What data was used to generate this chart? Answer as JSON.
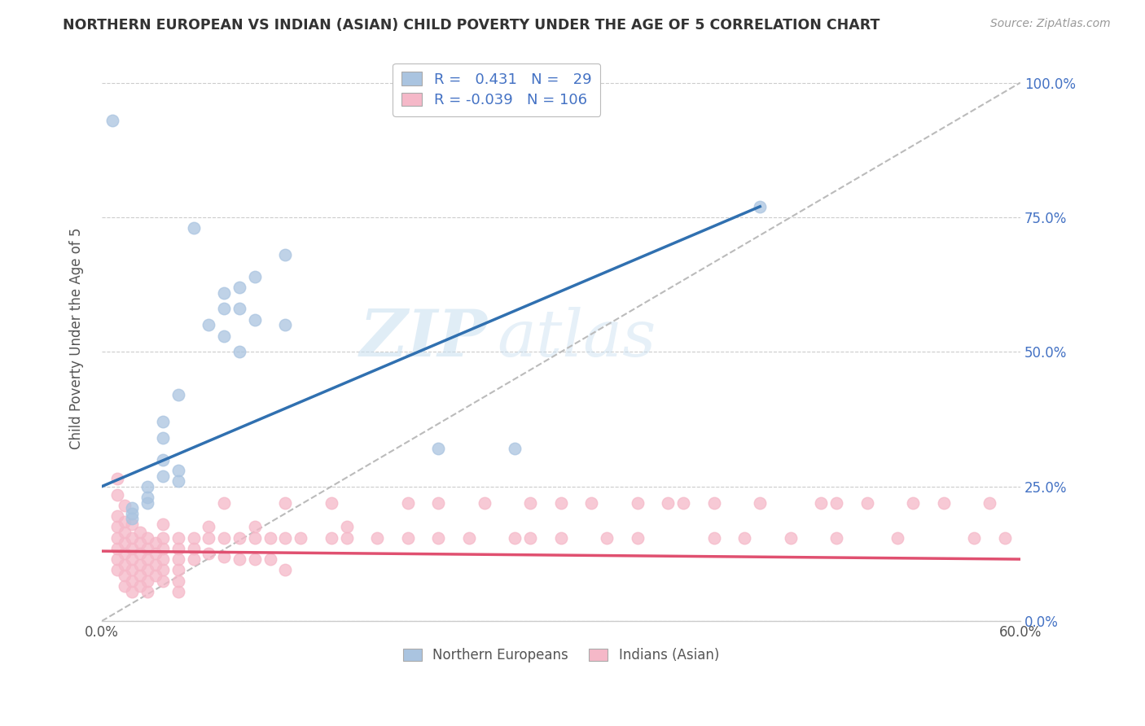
{
  "title": "NORTHERN EUROPEAN VS INDIAN (ASIAN) CHILD POVERTY UNDER THE AGE OF 5 CORRELATION CHART",
  "source": "Source: ZipAtlas.com",
  "ylabel": "Child Poverty Under the Age of 5",
  "xlim": [
    0.0,
    0.6
  ],
  "ylim": [
    0.0,
    1.05
  ],
  "yticks": [
    0.0,
    0.25,
    0.5,
    0.75,
    1.0
  ],
  "ytick_labels": [
    "",
    "",
    "",
    "",
    ""
  ],
  "ytick_right_labels": [
    "0.0%",
    "25.0%",
    "50.0%",
    "75.0%",
    "100.0%"
  ],
  "xtick_labels": [
    "0.0%",
    "60.0%"
  ],
  "xtick_positions": [
    0.0,
    0.6
  ],
  "blue_R": 0.431,
  "blue_N": 29,
  "pink_R": -0.039,
  "pink_N": 106,
  "blue_color": "#aac4e0",
  "pink_color": "#f5b8c8",
  "blue_line_color": "#3070b0",
  "pink_line_color": "#e05070",
  "diagonal_color": "#bbbbbb",
  "watermark_zip": "ZIP",
  "watermark_atlas": "atlas",
  "legend_label_blue": "Northern Europeans",
  "legend_label_pink": "Indians (Asian)",
  "blue_points": [
    [
      0.007,
      0.93
    ],
    [
      0.06,
      0.73
    ],
    [
      0.12,
      0.68
    ],
    [
      0.1,
      0.64
    ],
    [
      0.08,
      0.61
    ],
    [
      0.08,
      0.58
    ],
    [
      0.1,
      0.56
    ],
    [
      0.12,
      0.55
    ],
    [
      0.09,
      0.62
    ],
    [
      0.09,
      0.58
    ],
    [
      0.07,
      0.55
    ],
    [
      0.08,
      0.53
    ],
    [
      0.09,
      0.5
    ],
    [
      0.05,
      0.42
    ],
    [
      0.04,
      0.37
    ],
    [
      0.04,
      0.34
    ],
    [
      0.04,
      0.3
    ],
    [
      0.05,
      0.28
    ],
    [
      0.04,
      0.27
    ],
    [
      0.05,
      0.26
    ],
    [
      0.03,
      0.25
    ],
    [
      0.03,
      0.23
    ],
    [
      0.03,
      0.22
    ],
    [
      0.02,
      0.21
    ],
    [
      0.02,
      0.2
    ],
    [
      0.02,
      0.19
    ],
    [
      0.22,
      0.32
    ],
    [
      0.27,
      0.32
    ],
    [
      0.43,
      0.77
    ]
  ],
  "pink_points": [
    [
      0.01,
      0.265
    ],
    [
      0.01,
      0.235
    ],
    [
      0.01,
      0.195
    ],
    [
      0.01,
      0.175
    ],
    [
      0.01,
      0.155
    ],
    [
      0.01,
      0.135
    ],
    [
      0.01,
      0.115
    ],
    [
      0.01,
      0.095
    ],
    [
      0.015,
      0.215
    ],
    [
      0.015,
      0.185
    ],
    [
      0.015,
      0.165
    ],
    [
      0.015,
      0.145
    ],
    [
      0.015,
      0.125
    ],
    [
      0.015,
      0.105
    ],
    [
      0.015,
      0.085
    ],
    [
      0.015,
      0.065
    ],
    [
      0.02,
      0.18
    ],
    [
      0.02,
      0.155
    ],
    [
      0.02,
      0.135
    ],
    [
      0.02,
      0.115
    ],
    [
      0.02,
      0.095
    ],
    [
      0.02,
      0.075
    ],
    [
      0.02,
      0.055
    ],
    [
      0.025,
      0.165
    ],
    [
      0.025,
      0.145
    ],
    [
      0.025,
      0.125
    ],
    [
      0.025,
      0.105
    ],
    [
      0.025,
      0.085
    ],
    [
      0.025,
      0.065
    ],
    [
      0.03,
      0.155
    ],
    [
      0.03,
      0.135
    ],
    [
      0.03,
      0.115
    ],
    [
      0.03,
      0.095
    ],
    [
      0.03,
      0.075
    ],
    [
      0.03,
      0.055
    ],
    [
      0.035,
      0.145
    ],
    [
      0.035,
      0.125
    ],
    [
      0.035,
      0.105
    ],
    [
      0.035,
      0.085
    ],
    [
      0.04,
      0.18
    ],
    [
      0.04,
      0.155
    ],
    [
      0.04,
      0.135
    ],
    [
      0.04,
      0.115
    ],
    [
      0.04,
      0.095
    ],
    [
      0.04,
      0.075
    ],
    [
      0.05,
      0.155
    ],
    [
      0.05,
      0.135
    ],
    [
      0.05,
      0.115
    ],
    [
      0.05,
      0.095
    ],
    [
      0.05,
      0.075
    ],
    [
      0.05,
      0.055
    ],
    [
      0.06,
      0.155
    ],
    [
      0.06,
      0.135
    ],
    [
      0.06,
      0.115
    ],
    [
      0.07,
      0.175
    ],
    [
      0.07,
      0.155
    ],
    [
      0.07,
      0.125
    ],
    [
      0.08,
      0.22
    ],
    [
      0.08,
      0.155
    ],
    [
      0.08,
      0.12
    ],
    [
      0.09,
      0.155
    ],
    [
      0.09,
      0.115
    ],
    [
      0.1,
      0.175
    ],
    [
      0.1,
      0.155
    ],
    [
      0.1,
      0.115
    ],
    [
      0.11,
      0.155
    ],
    [
      0.11,
      0.115
    ],
    [
      0.12,
      0.22
    ],
    [
      0.12,
      0.155
    ],
    [
      0.12,
      0.095
    ],
    [
      0.13,
      0.155
    ],
    [
      0.15,
      0.22
    ],
    [
      0.15,
      0.155
    ],
    [
      0.16,
      0.175
    ],
    [
      0.16,
      0.155
    ],
    [
      0.18,
      0.155
    ],
    [
      0.2,
      0.22
    ],
    [
      0.2,
      0.155
    ],
    [
      0.22,
      0.22
    ],
    [
      0.22,
      0.155
    ],
    [
      0.24,
      0.155
    ],
    [
      0.25,
      0.22
    ],
    [
      0.27,
      0.155
    ],
    [
      0.28,
      0.22
    ],
    [
      0.28,
      0.155
    ],
    [
      0.3,
      0.22
    ],
    [
      0.3,
      0.155
    ],
    [
      0.32,
      0.22
    ],
    [
      0.33,
      0.155
    ],
    [
      0.35,
      0.22
    ],
    [
      0.35,
      0.155
    ],
    [
      0.37,
      0.22
    ],
    [
      0.38,
      0.22
    ],
    [
      0.4,
      0.22
    ],
    [
      0.4,
      0.155
    ],
    [
      0.42,
      0.155
    ],
    [
      0.43,
      0.22
    ],
    [
      0.45,
      0.155
    ],
    [
      0.47,
      0.22
    ],
    [
      0.48,
      0.22
    ],
    [
      0.48,
      0.155
    ],
    [
      0.5,
      0.22
    ],
    [
      0.52,
      0.155
    ],
    [
      0.53,
      0.22
    ],
    [
      0.55,
      0.22
    ],
    [
      0.57,
      0.155
    ],
    [
      0.58,
      0.22
    ],
    [
      0.59,
      0.155
    ]
  ],
  "blue_line_x": [
    0.0,
    0.43
  ],
  "blue_line_y": [
    0.25,
    0.77
  ],
  "pink_line_x": [
    0.0,
    0.6
  ],
  "pink_line_y": [
    0.13,
    0.115
  ]
}
